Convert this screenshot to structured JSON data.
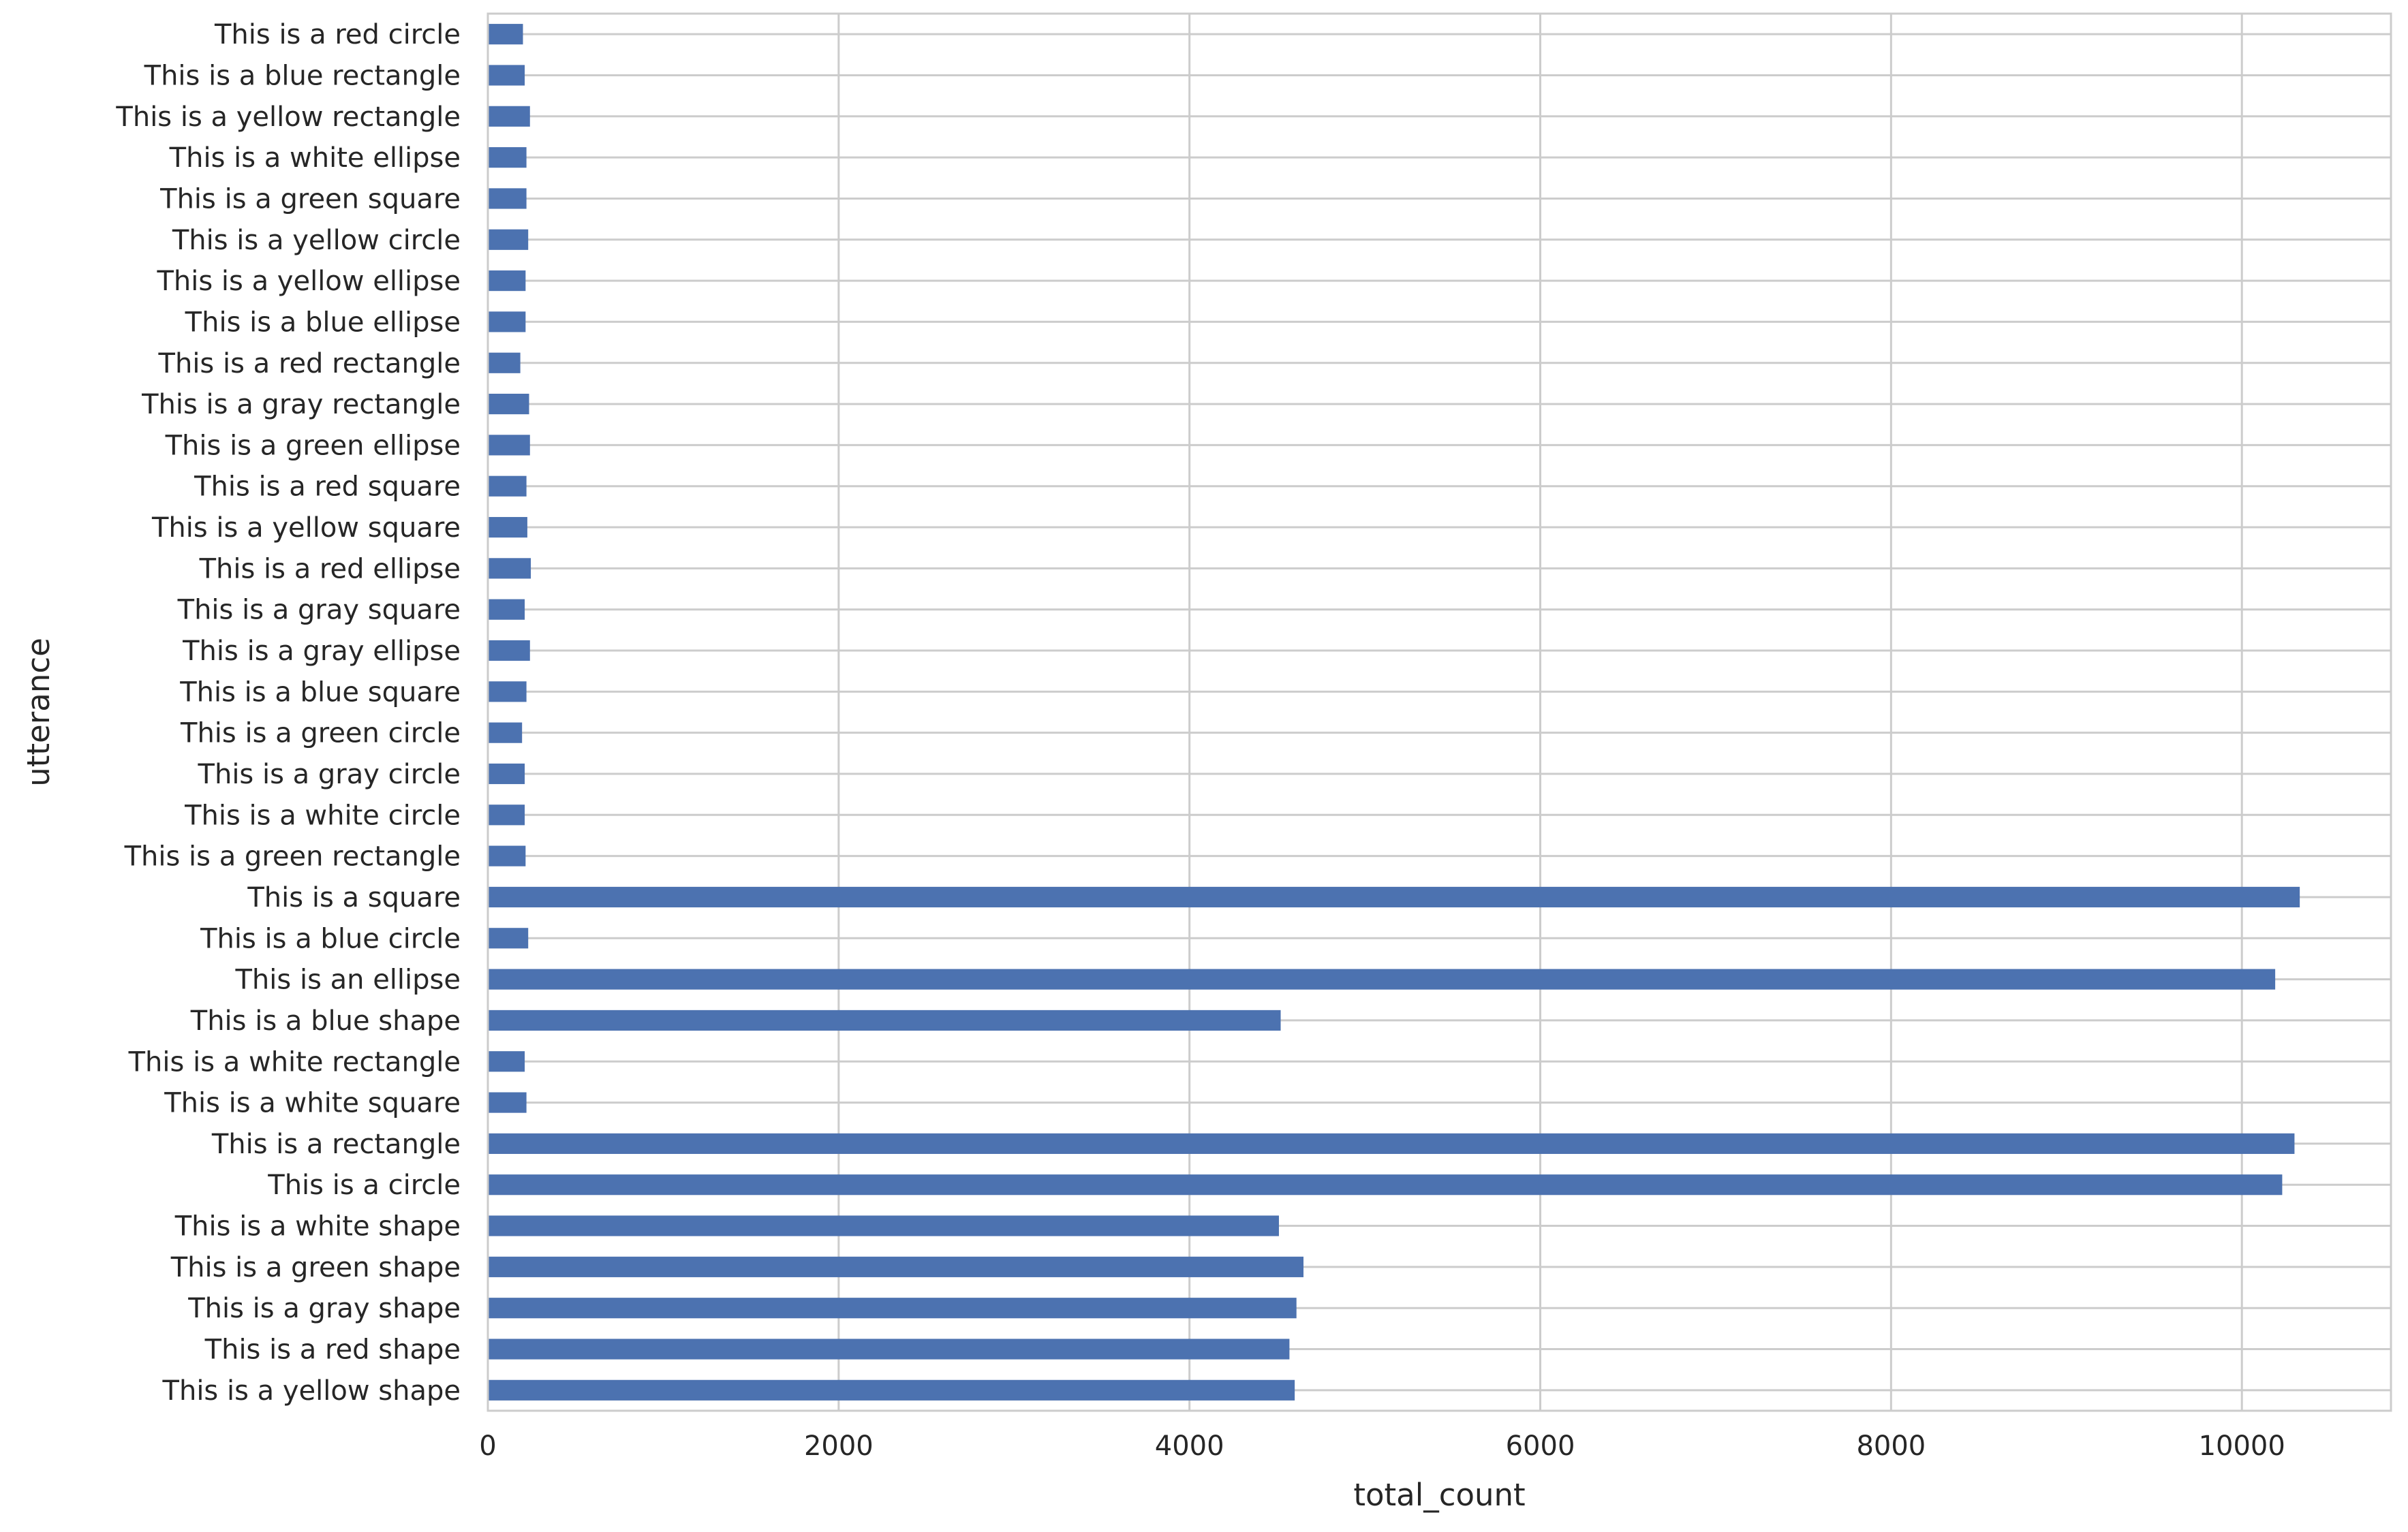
{
  "chart_data": {
    "type": "bar",
    "orientation": "horizontal",
    "xlabel": "total_count",
    "ylabel": "utterance",
    "xlim": [
      0,
      10850
    ],
    "xticks": [
      0,
      2000,
      4000,
      6000,
      8000,
      10000
    ],
    "grid": true,
    "bar_color": "#4c72b0",
    "categories": [
      "This is a red circle",
      "This is a blue rectangle",
      "This is a yellow rectangle",
      "This is a white ellipse",
      "This is a green square",
      "This is a yellow circle",
      "This is a yellow ellipse",
      "This is a blue ellipse",
      "This is a red rectangle",
      "This is a gray rectangle",
      "This is a green ellipse",
      "This is a red square",
      "This is a yellow square",
      "This is a red ellipse",
      "This is a gray square",
      "This is a gray ellipse",
      "This is a blue square",
      "This is a green circle",
      "This is a gray circle",
      "This is a white circle",
      "This is a green rectangle",
      "This is a square",
      "This is a blue circle",
      "This is an ellipse",
      "This is a blue shape",
      "This is a white rectangle",
      "This is a white square",
      "This is a rectangle",
      "This is a circle",
      "This is a white shape",
      "This is a green shape",
      "This is a gray shape",
      "This is a red shape",
      "This is a yellow shape"
    ],
    "values": [
      200,
      210,
      240,
      220,
      220,
      230,
      215,
      215,
      185,
      235,
      240,
      220,
      225,
      245,
      210,
      240,
      220,
      195,
      210,
      210,
      215,
      10330,
      230,
      10190,
      4520,
      210,
      220,
      10300,
      10230,
      4510,
      4650,
      4610,
      4570,
      4600
    ]
  }
}
